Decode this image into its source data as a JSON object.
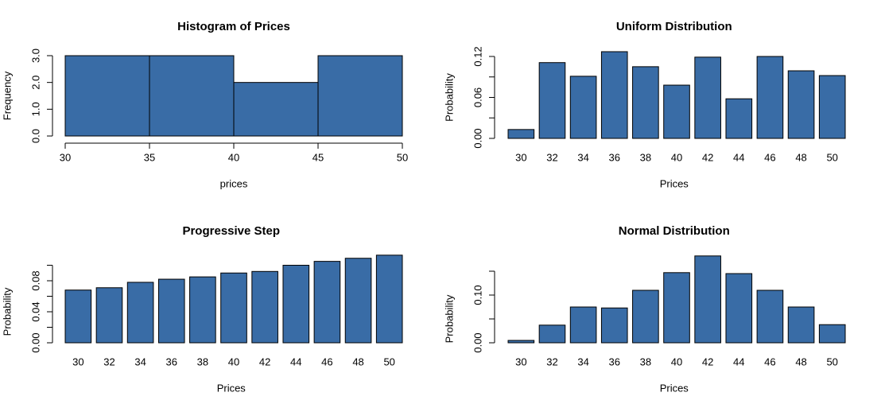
{
  "chart_data": [
    {
      "type": "histogram",
      "title": "Histogram of Prices",
      "x_label": "prices",
      "y_label": "Frequency",
      "color": "#396ca6",
      "bins": [
        30,
        35,
        40,
        45,
        50
      ],
      "counts": [
        3,
        3,
        2,
        3
      ],
      "xlim": [
        30,
        50
      ],
      "xticks": [
        30,
        35,
        40,
        45,
        50
      ],
      "ylim": [
        0,
        3
      ],
      "yticks": [
        {
          "value": 0,
          "label": "0.0"
        },
        {
          "value": 1,
          "label": "1.0"
        },
        {
          "value": 2,
          "label": "2.0"
        },
        {
          "value": 3,
          "label": "3.0"
        }
      ]
    },
    {
      "type": "bar",
      "title": "Uniform Distribution",
      "x_label": "Prices",
      "y_label": "Probability",
      "color": "#396ca6",
      "categories": [
        "30",
        "32",
        "34",
        "36",
        "38",
        "40",
        "42",
        "44",
        "46",
        "48",
        "50"
      ],
      "values": [
        0.013,
        0.111,
        0.091,
        0.127,
        0.105,
        0.078,
        0.119,
        0.058,
        0.12,
        0.099,
        0.092
      ],
      "ylim": [
        0,
        0.13
      ],
      "yticks": [
        {
          "value": 0,
          "label": "0.00"
        },
        0.06,
        0.12
      ],
      "minor_yticks": [
        0.03,
        0.09
      ]
    },
    {
      "type": "bar",
      "title": "Progressive Step",
      "x_label": "Prices",
      "y_label": "Probability",
      "color": "#396ca6",
      "categories": [
        "30",
        "32",
        "34",
        "36",
        "38",
        "40",
        "42",
        "44",
        "46",
        "48",
        "50"
      ],
      "values": [
        0.068,
        0.071,
        0.078,
        0.082,
        0.085,
        0.09,
        0.092,
        0.1,
        0.105,
        0.109,
        0.113
      ],
      "ylim": [
        0,
        0.12
      ],
      "yticks": [
        {
          "value": 0,
          "label": "0.00"
        },
        0.04,
        0.08
      ],
      "minor_yticks": [
        0.02,
        0.06,
        0.1
      ]
    },
    {
      "type": "bar",
      "title": "Normal Distribution",
      "x_label": "Prices",
      "y_label": "Probability",
      "color": "#396ca6",
      "categories": [
        "30",
        "32",
        "34",
        "36",
        "38",
        "40",
        "42",
        "44",
        "46",
        "48",
        "50"
      ],
      "values": [
        0.005,
        0.037,
        0.075,
        0.073,
        0.11,
        0.147,
        0.182,
        0.145,
        0.11,
        0.075,
        0.038
      ],
      "ylim": [
        0,
        0.19
      ],
      "yticks": [
        {
          "value": 0,
          "label": "0.00"
        },
        {
          "value": 0.1,
          "label": "0.10"
        }
      ],
      "minor_yticks": [
        0.05,
        0.15
      ]
    }
  ]
}
